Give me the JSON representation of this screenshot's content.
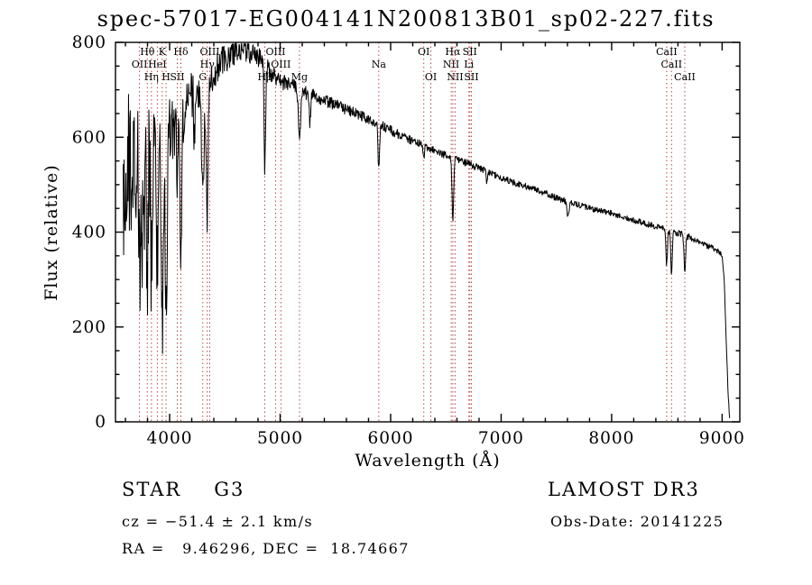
{
  "title": "spec-57017-EG004141N200813B01_sp02-227.fits",
  "chart_data": {
    "type": "line",
    "title": "spec-57017-EG004141N200813B01_sp02-227.fits",
    "xlabel": "Wavelength (Å)",
    "ylabel": "Flux (relative)",
    "xlim": [
      3510,
      9160
    ],
    "ylim": [
      0,
      800
    ],
    "xticks": [
      4000,
      5000,
      6000,
      7000,
      8000,
      9000
    ],
    "yticks": [
      0,
      200,
      400,
      600,
      800
    ],
    "x_minor_step": 200,
    "y_minor_step": 50,
    "grid": false,
    "spectrum_color": "#000000",
    "ref_line_color": "#b03434",
    "ref_label_color": "#8b2222",
    "wavelength_range": [
      3580,
      9068
    ],
    "continuum_points": [
      [
        3580,
        520
      ],
      [
        3650,
        540
      ],
      [
        3700,
        560
      ],
      [
        3750,
        575
      ],
      [
        3800,
        585
      ],
      [
        3850,
        590
      ],
      [
        3900,
        595
      ],
      [
        3950,
        600
      ],
      [
        4000,
        610
      ],
      [
        4050,
        625
      ],
      [
        4100,
        640
      ],
      [
        4150,
        665
      ],
      [
        4200,
        690
      ],
      [
        4250,
        700
      ],
      [
        4300,
        690
      ],
      [
        4350,
        700
      ],
      [
        4400,
        730
      ],
      [
        4450,
        755
      ],
      [
        4500,
        765
      ],
      [
        4550,
        775
      ],
      [
        4600,
        780
      ],
      [
        4650,
        782
      ],
      [
        4700,
        780
      ],
      [
        4750,
        775
      ],
      [
        4800,
        768
      ],
      [
        4850,
        755
      ],
      [
        4900,
        740
      ],
      [
        4950,
        728
      ],
      [
        5000,
        718
      ],
      [
        5100,
        710
      ],
      [
        5200,
        695
      ],
      [
        5300,
        688
      ],
      [
        5400,
        678
      ],
      [
        5500,
        668
      ],
      [
        5600,
        658
      ],
      [
        5700,
        648
      ],
      [
        5800,
        638
      ],
      [
        5900,
        628
      ],
      [
        6000,
        615
      ],
      [
        6100,
        602
      ],
      [
        6200,
        592
      ],
      [
        6300,
        582
      ],
      [
        6400,
        572
      ],
      [
        6500,
        562
      ],
      [
        6600,
        552
      ],
      [
        6700,
        545
      ],
      [
        6800,
        535
      ],
      [
        6900,
        525
      ],
      [
        7000,
        515
      ],
      [
        7100,
        505
      ],
      [
        7200,
        498
      ],
      [
        7300,
        490
      ],
      [
        7400,
        482
      ],
      [
        7500,
        472
      ],
      [
        7600,
        465
      ],
      [
        7700,
        458
      ],
      [
        7800,
        450
      ],
      [
        7900,
        445
      ],
      [
        8000,
        440
      ],
      [
        8100,
        432
      ],
      [
        8200,
        425
      ],
      [
        8300,
        418
      ],
      [
        8400,
        412
      ],
      [
        8500,
        405
      ],
      [
        8600,
        398
      ],
      [
        8700,
        390
      ],
      [
        8800,
        378
      ],
      [
        8850,
        372
      ],
      [
        8900,
        368
      ],
      [
        8950,
        362
      ],
      [
        9000,
        352
      ],
      [
        9020,
        295
      ],
      [
        9040,
        150
      ],
      [
        9055,
        55
      ],
      [
        9068,
        8
      ]
    ],
    "noise_profile": [
      [
        3580,
        170
      ],
      [
        3700,
        150
      ],
      [
        3800,
        135
      ],
      [
        3900,
        115
      ],
      [
        4000,
        85
      ],
      [
        4100,
        65
      ],
      [
        4200,
        50
      ],
      [
        4300,
        40
      ],
      [
        4450,
        32
      ],
      [
        4600,
        27
      ],
      [
        4800,
        23
      ],
      [
        5000,
        17
      ],
      [
        5400,
        13
      ],
      [
        5800,
        11
      ],
      [
        6200,
        9
      ],
      [
        6600,
        8
      ],
      [
        7000,
        7
      ],
      [
        8000,
        6
      ],
      [
        8600,
        7
      ],
      [
        9000,
        5
      ]
    ],
    "absorption_lines": [
      {
        "center": 3727,
        "depth": 260,
        "sigma": 7
      },
      {
        "center": 3750,
        "depth": 200,
        "sigma": 6
      },
      {
        "center": 3771,
        "depth": 210,
        "sigma": 6
      },
      {
        "center": 3798,
        "depth": 250,
        "sigma": 7
      },
      {
        "center": 3835,
        "depth": 270,
        "sigma": 7
      },
      {
        "center": 3889,
        "depth": 290,
        "sigma": 7
      },
      {
        "center": 3933,
        "depth": 420,
        "sigma": 9
      },
      {
        "center": 3968,
        "depth": 390,
        "sigma": 9
      },
      {
        "center": 4069,
        "depth": 160,
        "sigma": 6
      },
      {
        "center": 4102,
        "depth": 310,
        "sigma": 8
      },
      {
        "center": 4226,
        "depth": 120,
        "sigma": 6
      },
      {
        "center": 4300,
        "depth": 200,
        "sigma": 11
      },
      {
        "center": 4340,
        "depth": 270,
        "sigma": 8
      },
      {
        "center": 4861,
        "depth": 215,
        "sigma": 7
      },
      {
        "center": 5175,
        "depth": 95,
        "sigma": 10
      },
      {
        "center": 5270,
        "depth": 60,
        "sigma": 7
      },
      {
        "center": 5893,
        "depth": 100,
        "sigma": 7
      },
      {
        "center": 6300,
        "depth": 25,
        "sigma": 6
      },
      {
        "center": 6563,
        "depth": 135,
        "sigma": 7
      },
      {
        "center": 6870,
        "depth": 20,
        "sigma": 7
      },
      {
        "center": 7605,
        "depth": 30,
        "sigma": 9
      },
      {
        "center": 8498,
        "depth": 75,
        "sigma": 7
      },
      {
        "center": 8542,
        "depth": 90,
        "sigma": 7
      },
      {
        "center": 8662,
        "depth": 80,
        "sigma": 7
      }
    ],
    "spectral_lines": [
      {
        "label": "Hθ",
        "wavelength": 3798,
        "row": 1
      },
      {
        "label": "K",
        "wavelength": 3933,
        "row": 1
      },
      {
        "label": "Hδ",
        "wavelength": 4102,
        "row": 1
      },
      {
        "label": "OIII",
        "wavelength": 4363,
        "row": 1
      },
      {
        "label": "OIII",
        "wavelength": 4959,
        "row": 1
      },
      {
        "label": "OI",
        "wavelength": 6300,
        "row": 1
      },
      {
        "label": "Hα",
        "wavelength": 6563,
        "row": 1
      },
      {
        "label": "SII",
        "wavelength": 6717,
        "row": 1
      },
      {
        "label": "CaII",
        "wavelength": 8498,
        "row": 1
      },
      {
        "label": "OII",
        "wavelength": 3727,
        "row": 2
      },
      {
        "label": "HeI",
        "wavelength": 3889,
        "row": 2
      },
      {
        "label": "Hγ",
        "wavelength": 4340,
        "row": 2
      },
      {
        "label": "OIII",
        "wavelength": 5007,
        "row": 2
      },
      {
        "label": "Na",
        "wavelength": 5893,
        "row": 2
      },
      {
        "label": "NII",
        "wavelength": 6548,
        "row": 2
      },
      {
        "label": "Li",
        "wavelength": 6708,
        "row": 2
      },
      {
        "label": "CaII",
        "wavelength": 8542,
        "row": 2
      },
      {
        "label": "Hη",
        "wavelength": 3835,
        "row": 3
      },
      {
        "label": "H",
        "wavelength": 3968,
        "row": 3
      },
      {
        "label": "SII",
        "wavelength": 4069,
        "row": 3
      },
      {
        "label": "G",
        "wavelength": 4300,
        "row": 3
      },
      {
        "label": "Hβ",
        "wavelength": 4861,
        "row": 3
      },
      {
        "label": "Mg",
        "wavelength": 5175,
        "row": 3
      },
      {
        "label": "OI",
        "wavelength": 6364,
        "row": 3
      },
      {
        "label": "NII",
        "wavelength": 6583,
        "row": 3
      },
      {
        "label": "SII",
        "wavelength": 6731,
        "row": 3
      },
      {
        "label": "CaII",
        "wavelength": 8662,
        "row": 3
      }
    ]
  },
  "annotations": {
    "left": {
      "object_type": "STAR",
      "subclass": "G3",
      "cz": "cz = −51.4 ± 2.1 km/s",
      "ra_dec": "RA =   9.46296, DEC =  18.74667"
    },
    "right": {
      "survey": "LAMOST DR3",
      "obs_date": "Obs-Date: 20141225"
    }
  }
}
